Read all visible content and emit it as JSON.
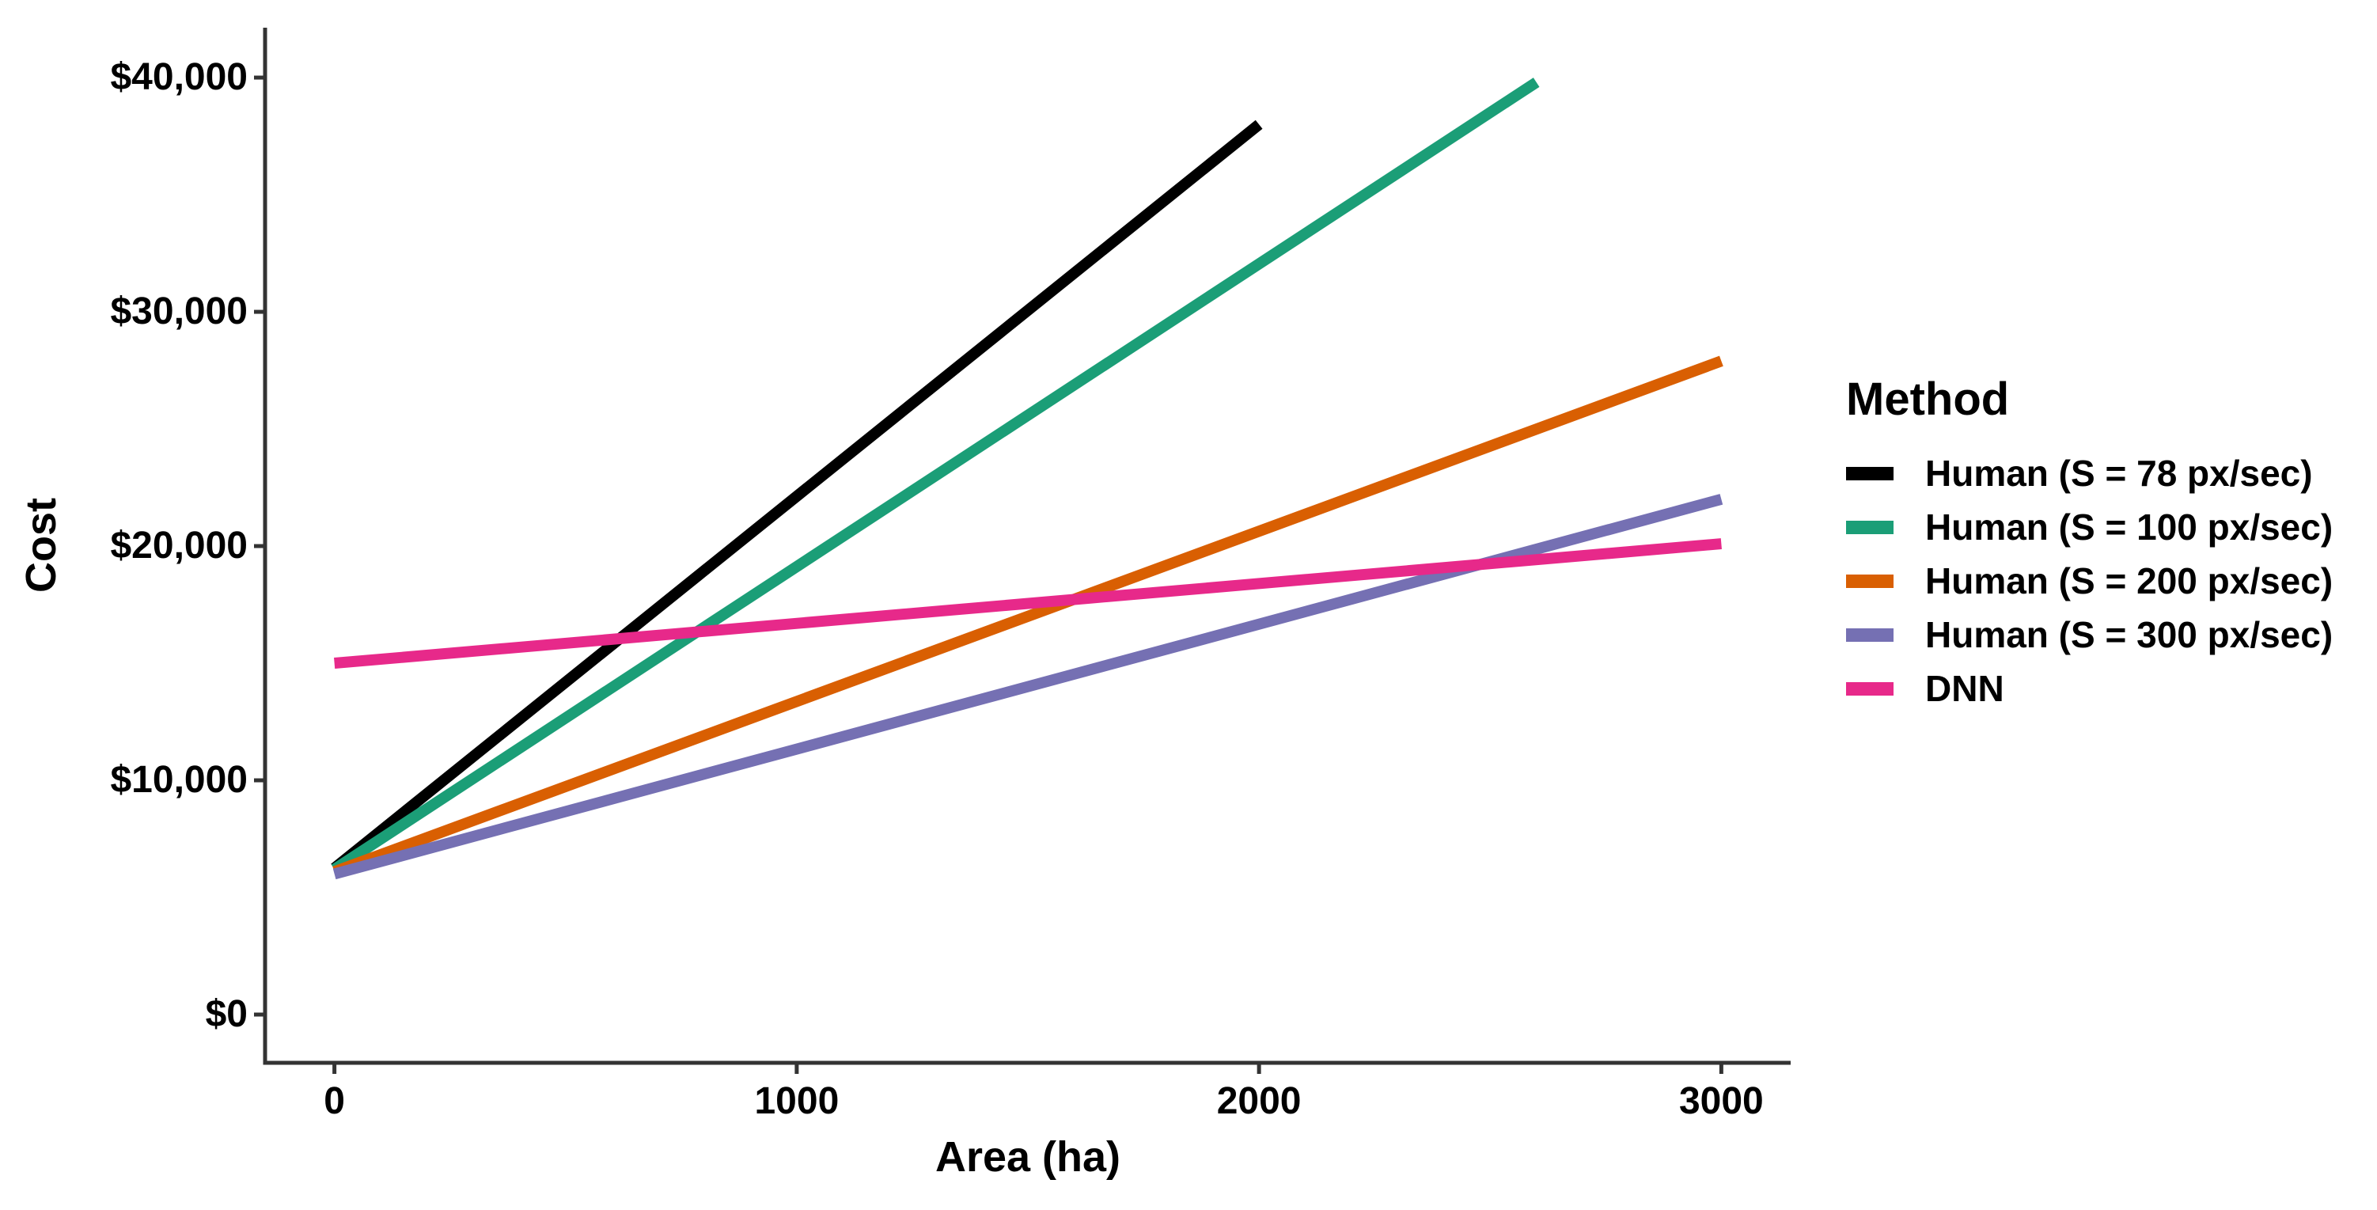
{
  "chart_data": {
    "type": "line",
    "title": "",
    "xlabel": "Area (ha)",
    "ylabel": "Cost",
    "legend_title": "Method",
    "legend_position": "right",
    "grid": false,
    "xlim": [
      -150,
      3150
    ],
    "ylim": [
      -2060,
      42130
    ],
    "x_ticks": [
      0,
      1000,
      2000,
      3000
    ],
    "x_tick_labels": [
      "0",
      "1000",
      "2000",
      "3000"
    ],
    "y_ticks": [
      0,
      10000,
      20000,
      30000,
      40000
    ],
    "y_tick_labels": [
      "$0",
      "$10,000",
      "$20,000",
      "$30,000",
      "$40,000"
    ],
    "axis_color": "#333333",
    "series": [
      {
        "name": "Human (S = 78 px/sec)",
        "color": "#000000",
        "x": [
          0,
          2000
        ],
        "y": [
          6250,
          38000
        ]
      },
      {
        "name": "Human (S = 100 px/sec)",
        "color": "#1B9E77",
        "x": [
          0,
          2600
        ],
        "y": [
          6200,
          39800
        ]
      },
      {
        "name": "Human (S = 200 px/sec)",
        "color": "#D95F02",
        "x": [
          0,
          3000
        ],
        "y": [
          6100,
          27900
        ]
      },
      {
        "name": "Human (S = 300 px/sec)",
        "color": "#7570B3",
        "x": [
          0,
          3000
        ],
        "y": [
          6000,
          22000
        ]
      },
      {
        "name": "DNN",
        "color": "#E7298A",
        "x": [
          0,
          3000
        ],
        "y": [
          15000,
          20100
        ]
      }
    ]
  }
}
